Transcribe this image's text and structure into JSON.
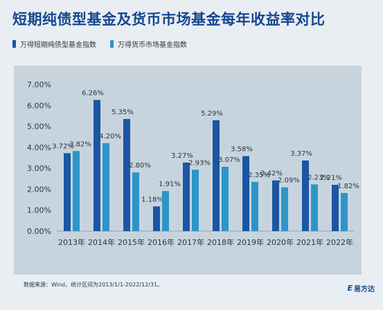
{
  "title": "短期纯债型基金及货币市场基金每年收益率对比",
  "footer": "数据来源：Wind，统计区间为2013/1/1-2022/12/31。",
  "logo": {
    "mark": "E",
    "text": "易方达"
  },
  "colors": {
    "series1": "#1a56a4",
    "series2": "#2e95c9",
    "title": "#14478f",
    "panel": "#c8d4dd",
    "page": "#e9eef3"
  },
  "chart_data": {
    "type": "bar",
    "categories": [
      "2013年",
      "2014年",
      "2015年",
      "2016年",
      "2017年",
      "2018年",
      "2019年",
      "2020年",
      "2021年",
      "2022年"
    ],
    "series": [
      {
        "name": "万得短期纯债型基金指数",
        "values": [
          3.72,
          6.26,
          5.35,
          1.18,
          3.27,
          5.29,
          3.58,
          2.42,
          3.37,
          2.21
        ],
        "labels": [
          "3.72%",
          "6.26%",
          "5.35%",
          "1.18%",
          "3.27%",
          "5.29%",
          "3.58%",
          "2.42%",
          "3.37%",
          "2.21%"
        ]
      },
      {
        "name": "万得货币市场基金指数",
        "values": [
          3.82,
          4.2,
          2.8,
          1.91,
          2.93,
          3.07,
          2.35,
          2.09,
          2.23,
          1.82
        ],
        "labels": [
          "3.82%",
          "4.20%",
          "2.80%",
          "1.91%",
          "2.93%",
          "3.07%",
          "2.35%",
          "2.09%",
          "2.23%",
          "1.82%"
        ]
      }
    ],
    "yticks": [
      "0.00%",
      "1.00%",
      "2.00%",
      "3.00%",
      "4.00%",
      "5.00%",
      "6.00%",
      "7.00%"
    ],
    "ylim": [
      0,
      7
    ],
    "grid": false,
    "legend_position": "top-left"
  }
}
